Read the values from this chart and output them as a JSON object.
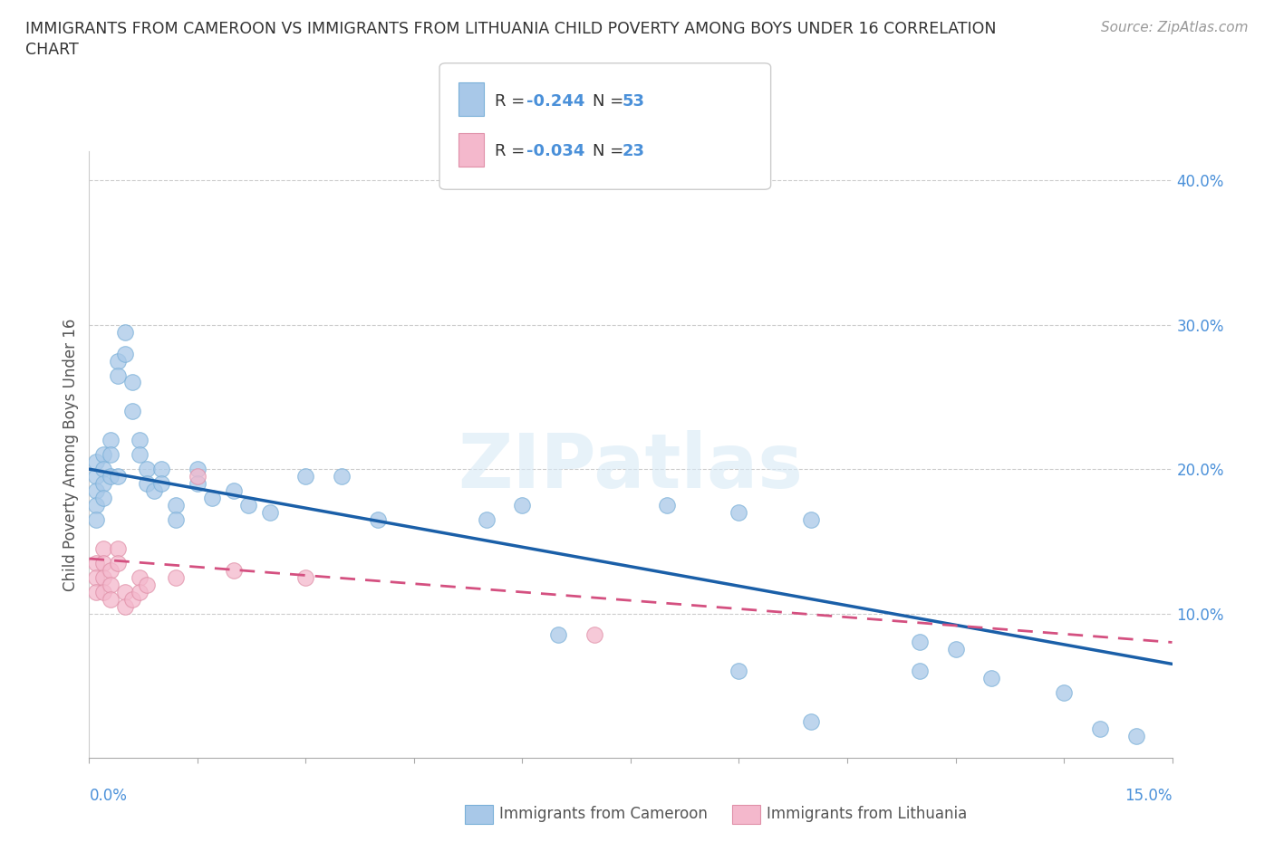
{
  "title_line1": "IMMIGRANTS FROM CAMEROON VS IMMIGRANTS FROM LITHUANIA CHILD POVERTY AMONG BOYS UNDER 16 CORRELATION",
  "title_line2": "CHART",
  "source": "Source: ZipAtlas.com",
  "ylabel": "Child Poverty Among Boys Under 16",
  "xlim": [
    0.0,
    0.15
  ],
  "ylim": [
    0.0,
    0.42
  ],
  "yticks_right": [
    0.1,
    0.2,
    0.3,
    0.4
  ],
  "ytick_labels_right": [
    "10.0%",
    "20.0%",
    "30.0%",
    "40.0%"
  ],
  "watermark": "ZIPatlas",
  "cameroon_color": "#a8c8e8",
  "lithuania_color": "#f4b8cc",
  "trend_cameroon_color": "#1a5fa8",
  "trend_lithuania_color": "#d45080",
  "cam_trend_x0": 0.0,
  "cam_trend_y0": 0.2,
  "cam_trend_x1": 0.15,
  "cam_trend_y1": 0.065,
  "lit_trend_x0": 0.0,
  "lit_trend_y0": 0.138,
  "lit_trend_x1": 0.15,
  "lit_trend_y1": 0.08,
  "cameroon_x": [
    0.001,
    0.001,
    0.001,
    0.001,
    0.001,
    0.002,
    0.002,
    0.002,
    0.002,
    0.003,
    0.003,
    0.003,
    0.004,
    0.004,
    0.004,
    0.005,
    0.005,
    0.006,
    0.006,
    0.007,
    0.007,
    0.008,
    0.008,
    0.009,
    0.01,
    0.01,
    0.012,
    0.012,
    0.015,
    0.015,
    0.017,
    0.02,
    0.022,
    0.025,
    0.03,
    0.035,
    0.04,
    0.055,
    0.06,
    0.065,
    0.08,
    0.09,
    0.1,
    0.115,
    0.12,
    0.125,
    0.135,
    0.14,
    0.145,
    0.1,
    0.115,
    0.09
  ],
  "cameroon_y": [
    0.205,
    0.195,
    0.185,
    0.175,
    0.165,
    0.21,
    0.2,
    0.19,
    0.18,
    0.22,
    0.21,
    0.195,
    0.275,
    0.265,
    0.195,
    0.295,
    0.28,
    0.26,
    0.24,
    0.22,
    0.21,
    0.2,
    0.19,
    0.185,
    0.2,
    0.19,
    0.175,
    0.165,
    0.2,
    0.19,
    0.18,
    0.185,
    0.175,
    0.17,
    0.195,
    0.195,
    0.165,
    0.165,
    0.175,
    0.085,
    0.175,
    0.17,
    0.165,
    0.08,
    0.075,
    0.055,
    0.045,
    0.02,
    0.015,
    0.025,
    0.06,
    0.06
  ],
  "lithuania_x": [
    0.001,
    0.001,
    0.001,
    0.002,
    0.002,
    0.002,
    0.002,
    0.003,
    0.003,
    0.003,
    0.004,
    0.004,
    0.005,
    0.005,
    0.006,
    0.007,
    0.007,
    0.008,
    0.012,
    0.015,
    0.02,
    0.03,
    0.07
  ],
  "lithuania_y": [
    0.135,
    0.125,
    0.115,
    0.145,
    0.135,
    0.125,
    0.115,
    0.13,
    0.12,
    0.11,
    0.145,
    0.135,
    0.115,
    0.105,
    0.11,
    0.125,
    0.115,
    0.12,
    0.125,
    0.195,
    0.13,
    0.125,
    0.085
  ]
}
